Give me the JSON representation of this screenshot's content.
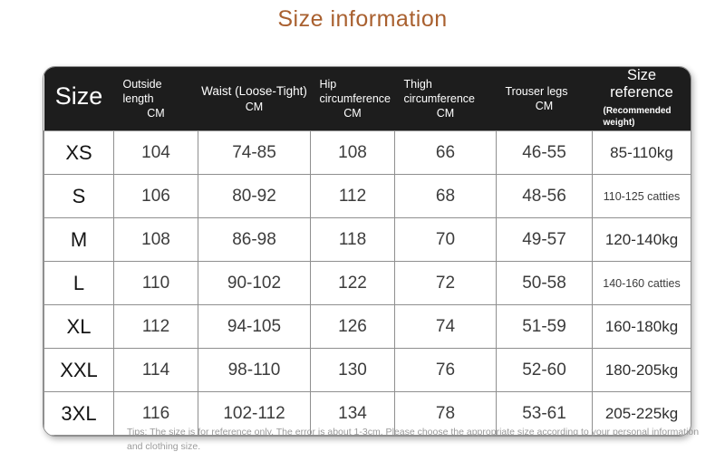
{
  "page": {
    "title": "Size information",
    "tips": "Tips: The size is for reference only. The error is about 1-3cm. Please choose the appropriate size according to your personal information and clothing size."
  },
  "colors": {
    "title_text": "#a9602f",
    "header_background": "#1d1d1d",
    "header_text": "#ffffff",
    "body_text": "#3c3c3c",
    "grid_border": "#8f8f8f",
    "tips_text": "#9a9a9a"
  },
  "table": {
    "header": {
      "size_label": "Size",
      "columns": [
        {
          "name": "Outside length",
          "unit": "CM"
        },
        {
          "name": "Waist (Loose-Tight)",
          "unit": "CM"
        },
        {
          "name": "Hip circumference",
          "unit": "CM"
        },
        {
          "name": "Thigh circumference",
          "unit": "CM"
        },
        {
          "name": "Trouser legs",
          "unit": "CM"
        }
      ],
      "size_reference": {
        "name": "Size reference",
        "sub": "(Recommended weight)"
      }
    },
    "rows": [
      {
        "size": "XS",
        "outside_length": "104",
        "waist": "74-85",
        "hip": "108",
        "thigh": "66",
        "trouser_legs": "46-55",
        "size_reference": "85-110kg",
        "ref_small": false
      },
      {
        "size": "S",
        "outside_length": "106",
        "waist": "80-92",
        "hip": "112",
        "thigh": "68",
        "trouser_legs": "48-56",
        "size_reference": "110-125 catties",
        "ref_small": true
      },
      {
        "size": "M",
        "outside_length": "108",
        "waist": "86-98",
        "hip": "118",
        "thigh": "70",
        "trouser_legs": "49-57",
        "size_reference": "120-140kg",
        "ref_small": false
      },
      {
        "size": "L",
        "outside_length": "110",
        "waist": "90-102",
        "hip": "122",
        "thigh": "72",
        "trouser_legs": "50-58",
        "size_reference": "140-160 catties",
        "ref_small": true
      },
      {
        "size": "XL",
        "outside_length": "112",
        "waist": "94-105",
        "hip": "126",
        "thigh": "74",
        "trouser_legs": "51-59",
        "size_reference": "160-180kg",
        "ref_small": false
      },
      {
        "size": "XXL",
        "outside_length": "114",
        "waist": "98-110",
        "hip": "130",
        "thigh": "76",
        "trouser_legs": "52-60",
        "size_reference": "180-205kg",
        "ref_small": false
      },
      {
        "size": "3XL",
        "outside_length": "116",
        "waist": "102-112",
        "hip": "134",
        "thigh": "78",
        "trouser_legs": "53-61",
        "size_reference": "205-225kg",
        "ref_small": false
      }
    ]
  }
}
